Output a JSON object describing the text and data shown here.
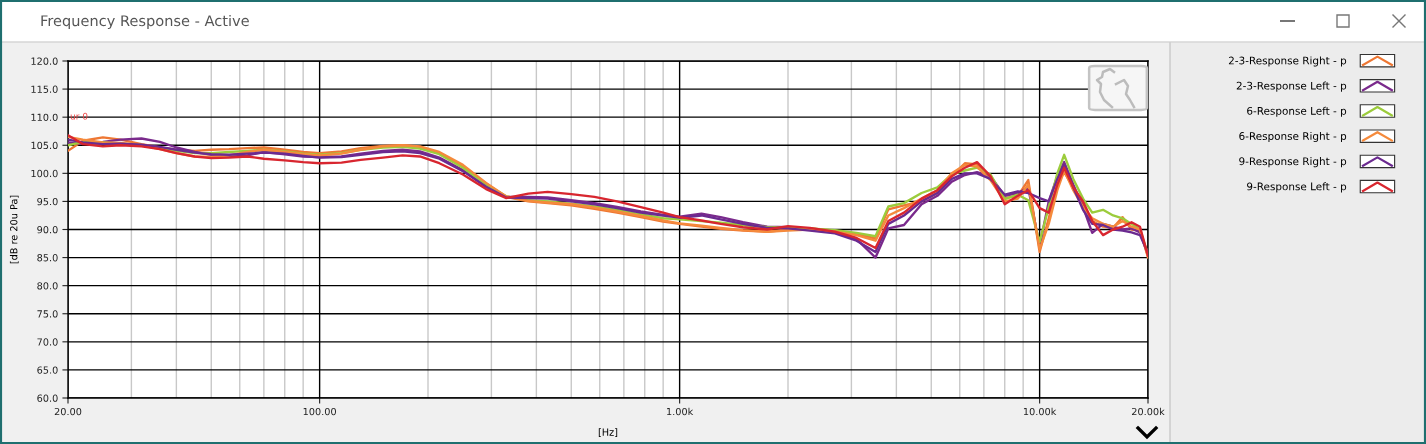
{
  "chart_data": {
    "type": "line",
    "title": "Frequency Response - Active",
    "xlabel": "[Hz]",
    "ylabel": "[dB re 20u Pa]",
    "log": "x",
    "grid": true,
    "legend": "right",
    "xlim": [
      20,
      20000
    ],
    "ylim": [
      60,
      120
    ],
    "xticks": [
      {
        "value": 20,
        "label": "20.00"
      },
      {
        "value": 30,
        "label": null
      },
      {
        "value": 40,
        "label": null
      },
      {
        "value": 50,
        "label": null
      },
      {
        "value": 60,
        "label": null
      },
      {
        "value": 70,
        "label": null
      },
      {
        "value": 80,
        "label": null
      },
      {
        "value": 90,
        "label": null
      },
      {
        "value": 100,
        "label": "100.00"
      },
      {
        "value": 200,
        "label": null
      },
      {
        "value": 300,
        "label": null
      },
      {
        "value": 400,
        "label": null
      },
      {
        "value": 500,
        "label": null
      },
      {
        "value": 600,
        "label": null
      },
      {
        "value": 700,
        "label": null
      },
      {
        "value": 800,
        "label": null
      },
      {
        "value": 900,
        "label": null
      },
      {
        "value": 1000,
        "label": "1.00k"
      },
      {
        "value": 2000,
        "label": null
      },
      {
        "value": 3000,
        "label": null
      },
      {
        "value": 4000,
        "label": null
      },
      {
        "value": 5000,
        "label": null
      },
      {
        "value": 6000,
        "label": null
      },
      {
        "value": 7000,
        "label": null
      },
      {
        "value": 8000,
        "label": null
      },
      {
        "value": 9000,
        "label": null
      },
      {
        "value": 10000,
        "label": "10.00k"
      },
      {
        "value": 20000,
        "label": "20.00k"
      }
    ],
    "yticks": [
      {
        "value": 60,
        "label": "60.0"
      },
      {
        "value": 65,
        "label": "65.0"
      },
      {
        "value": 70,
        "label": "70.0"
      },
      {
        "value": 75,
        "label": "75.0"
      },
      {
        "value": 80,
        "label": "80.0"
      },
      {
        "value": 85,
        "label": "85.0"
      },
      {
        "value": 90,
        "label": "90.0"
      },
      {
        "value": 95,
        "label": "95.0"
      },
      {
        "value": 100,
        "label": "100.0"
      },
      {
        "value": 105,
        "label": "105.0"
      },
      {
        "value": 110,
        "label": "110.0"
      },
      {
        "value": 115,
        "label": "115.0"
      },
      {
        "value": 120,
        "label": "120.0"
      }
    ],
    "annotations": [
      "ur 0"
    ],
    "x": [
      20,
      22,
      25,
      28,
      32,
      36,
      40,
      45,
      50,
      56,
      63,
      70,
      80,
      90,
      100,
      115,
      130,
      150,
      170,
      190,
      215,
      250,
      290,
      330,
      380,
      430,
      500,
      580,
      670,
      780,
      900,
      1000,
      1150,
      1300,
      1500,
      1750,
      2000,
      2300,
      2700,
      3100,
      3500,
      3800,
      4200,
      4700,
      5200,
      5700,
      6200,
      6700,
      7300,
      8000,
      8700,
      9300,
      10000,
      10600,
      11200,
      11700,
      12400,
      13200,
      14000,
      15000,
      16000,
      17000,
      18000,
      19000,
      20000
    ],
    "series": [
      {
        "name": "2-3-Response Right - p",
        "color": "#ee7733",
        "values": [
          104.0,
          105.8,
          106.4,
          106.0,
          105.2,
          104.6,
          104.2,
          104.0,
          104.2,
          104.3,
          104.5,
          104.6,
          104.2,
          103.8,
          103.6,
          103.9,
          104.5,
          104.9,
          105.0,
          104.7,
          103.6,
          101.2,
          98.2,
          95.8,
          95.0,
          94.7,
          94.3,
          93.7,
          93.0,
          92.2,
          91.4,
          91.0,
          90.5,
          90.1,
          89.8,
          89.6,
          90.0,
          90.2,
          89.8,
          89.2,
          88.4,
          93.6,
          94.3,
          95.0,
          96.5,
          99.5,
          101.8,
          101.6,
          99.0,
          95.6,
          96.0,
          98.8,
          86.0,
          92.0,
          98.0,
          100.2,
          97.5,
          94.5,
          91.5,
          90.5,
          90.3,
          92.2,
          90.0,
          89.8,
          85.2
        ]
      },
      {
        "name": "2-3-Response Left - p",
        "color": "#7a2a8c",
        "values": [
          105.5,
          105.3,
          105.6,
          106.0,
          106.2,
          105.6,
          104.6,
          103.8,
          103.3,
          103.0,
          103.2,
          103.8,
          103.4,
          103.0,
          102.9,
          103.0,
          103.5,
          104.0,
          104.2,
          103.9,
          102.8,
          100.6,
          97.6,
          95.8,
          95.8,
          95.7,
          95.2,
          94.7,
          94.0,
          93.2,
          92.6,
          92.3,
          92.8,
          92.2,
          91.3,
          90.5,
          90.4,
          90.0,
          89.5,
          88.3,
          85.0,
          90.2,
          90.8,
          94.5,
          96.0,
          98.5,
          99.7,
          100.2,
          99.5,
          96.0,
          96.5,
          97.4,
          87.0,
          95.0,
          99.5,
          102.0,
          98.0,
          94.0,
          89.4,
          91.0,
          90.5,
          90.0,
          90.2,
          89.5,
          85.5
        ]
      },
      {
        "name": "6-Response Left - p",
        "color": "#9ccc3c",
        "values": [
          105.0,
          105.6,
          105.5,
          105.3,
          105.0,
          104.5,
          104.0,
          103.6,
          103.6,
          103.8,
          104.0,
          104.2,
          103.9,
          103.5,
          103.3,
          103.6,
          104.2,
          104.6,
          104.7,
          104.4,
          103.4,
          101.0,
          98.0,
          95.9,
          95.2,
          95.0,
          94.6,
          94.1,
          93.5,
          92.7,
          92.0,
          91.8,
          91.5,
          91.2,
          90.8,
          90.4,
          90.3,
          90.2,
          89.9,
          89.4,
          88.8,
          94.1,
          94.7,
          96.5,
          97.5,
          99.8,
          100.5,
          101.0,
          99.8,
          95.4,
          96.2,
          95.2,
          87.8,
          94.0,
          100.0,
          103.3,
          99.0,
          95.5,
          93.0,
          93.5,
          92.5,
          92.0,
          91.0,
          90.0,
          85.6
        ]
      },
      {
        "name": "6-Response Right - p",
        "color": "#f58a3c",
        "values": [
          106.5,
          106.0,
          105.5,
          105.4,
          105.0,
          104.3,
          103.6,
          103.0,
          102.9,
          103.2,
          103.8,
          104.2,
          103.8,
          103.4,
          103.2,
          103.5,
          104.2,
          104.8,
          105.0,
          104.8,
          103.8,
          101.5,
          98.3,
          95.9,
          95.1,
          94.8,
          94.5,
          93.9,
          93.2,
          92.4,
          91.6,
          91.1,
          90.7,
          90.3,
          89.9,
          89.6,
          89.8,
          90.0,
          89.6,
          89.0,
          88.0,
          92.5,
          93.8,
          95.5,
          97.0,
          100.0,
          101.5,
          101.2,
          98.8,
          95.0,
          95.5,
          98.0,
          86.5,
          91.0,
          97.0,
          100.5,
          97.0,
          94.0,
          92.0,
          91.0,
          90.5,
          91.5,
          90.5,
          90.0,
          85.0
        ]
      },
      {
        "name": "9-Response Right - p",
        "color": "#6b2a90",
        "values": [
          106.0,
          105.5,
          105.2,
          105.3,
          105.1,
          104.7,
          104.2,
          103.7,
          103.4,
          103.3,
          103.5,
          103.7,
          103.5,
          103.1,
          102.8,
          102.9,
          103.3,
          103.8,
          103.9,
          103.6,
          102.6,
          100.4,
          97.6,
          95.7,
          95.6,
          95.5,
          95.0,
          94.5,
          93.8,
          93.0,
          92.5,
          92.1,
          92.5,
          91.8,
          91.0,
          90.3,
          90.2,
          89.8,
          89.3,
          88.0,
          86.0,
          91.0,
          92.5,
          95.0,
          96.5,
          99.0,
          100.0,
          100.0,
          99.0,
          96.2,
          96.8,
          96.5,
          95.6,
          95.0,
          99.0,
          101.5,
          97.5,
          93.5,
          91.0,
          90.8,
          90.0,
          89.8,
          89.5,
          89.0,
          85.8
        ]
      },
      {
        "name": "9-Response Left - p",
        "color": "#d8262f",
        "values": [
          106.8,
          105.2,
          104.8,
          105.0,
          104.8,
          104.3,
          103.6,
          103.0,
          102.7,
          102.8,
          103.0,
          102.6,
          102.3,
          102.0,
          101.8,
          101.9,
          102.4,
          102.8,
          103.2,
          103.0,
          101.8,
          99.8,
          97.2,
          95.6,
          96.4,
          96.7,
          96.3,
          95.8,
          95.0,
          94.0,
          93.0,
          92.2,
          91.6,
          91.0,
          90.4,
          90.0,
          90.6,
          90.3,
          89.6,
          88.5,
          86.7,
          91.5,
          93.0,
          95.5,
          97.0,
          99.5,
          101.0,
          102.0,
          99.5,
          94.5,
          96.0,
          97.0,
          93.8,
          93.0,
          98.0,
          101.0,
          97.5,
          95.0,
          91.5,
          89.0,
          90.0,
          90.5,
          91.3,
          90.5,
          85.3
        ]
      }
    ]
  }
}
